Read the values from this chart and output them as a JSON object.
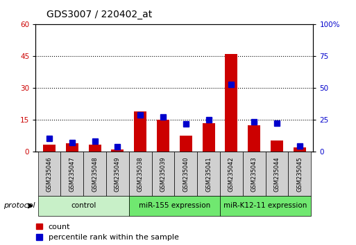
{
  "title": "GDS3007 / 220402_at",
  "samples": [
    "GSM235046",
    "GSM235047",
    "GSM235048",
    "GSM235049",
    "GSM235038",
    "GSM235039",
    "GSM235040",
    "GSM235041",
    "GSM235042",
    "GSM235043",
    "GSM235044",
    "GSM235045"
  ],
  "count_values": [
    3.5,
    4.0,
    3.5,
    1.2,
    19.0,
    15.0,
    7.5,
    13.5,
    46.0,
    12.5,
    5.5,
    2.0
  ],
  "percentile_values": [
    10.5,
    7.5,
    8.5,
    4.0,
    29.0,
    27.5,
    22.0,
    25.0,
    53.0,
    23.5,
    22.5,
    4.5
  ],
  "groups": [
    {
      "label": "control",
      "start": 0,
      "end": 4,
      "color": "#c8f0c8"
    },
    {
      "label": "miR-155 expression",
      "start": 4,
      "end": 8,
      "color": "#70e870"
    },
    {
      "label": "miR-K12-11 expression",
      "start": 8,
      "end": 12,
      "color": "#70e870"
    }
  ],
  "protocol_label": "protocol",
  "left_ylim": [
    0,
    60
  ],
  "right_ylim": [
    0,
    100
  ],
  "left_yticks": [
    0,
    15,
    30,
    45,
    60
  ],
  "right_yticks": [
    0,
    25,
    50,
    75,
    100
  ],
  "right_yticklabels": [
    "0",
    "25",
    "50",
    "75",
    "100%"
  ],
  "count_color": "#cc0000",
  "percentile_color": "#0000cc",
  "bar_width": 0.55,
  "marker_size": 6,
  "grid_color": "#000000",
  "bg_color": "#ffffff",
  "tick_label_color_left": "#cc0000",
  "tick_label_color_right": "#0000cc",
  "legend_count": "count",
  "legend_percentile": "percentile rank within the sample",
  "title_fontsize": 10,
  "axis_fontsize": 7.5,
  "legend_fontsize": 8,
  "sample_box_color": "#d0d0d0",
  "group_box_border": "#000000"
}
